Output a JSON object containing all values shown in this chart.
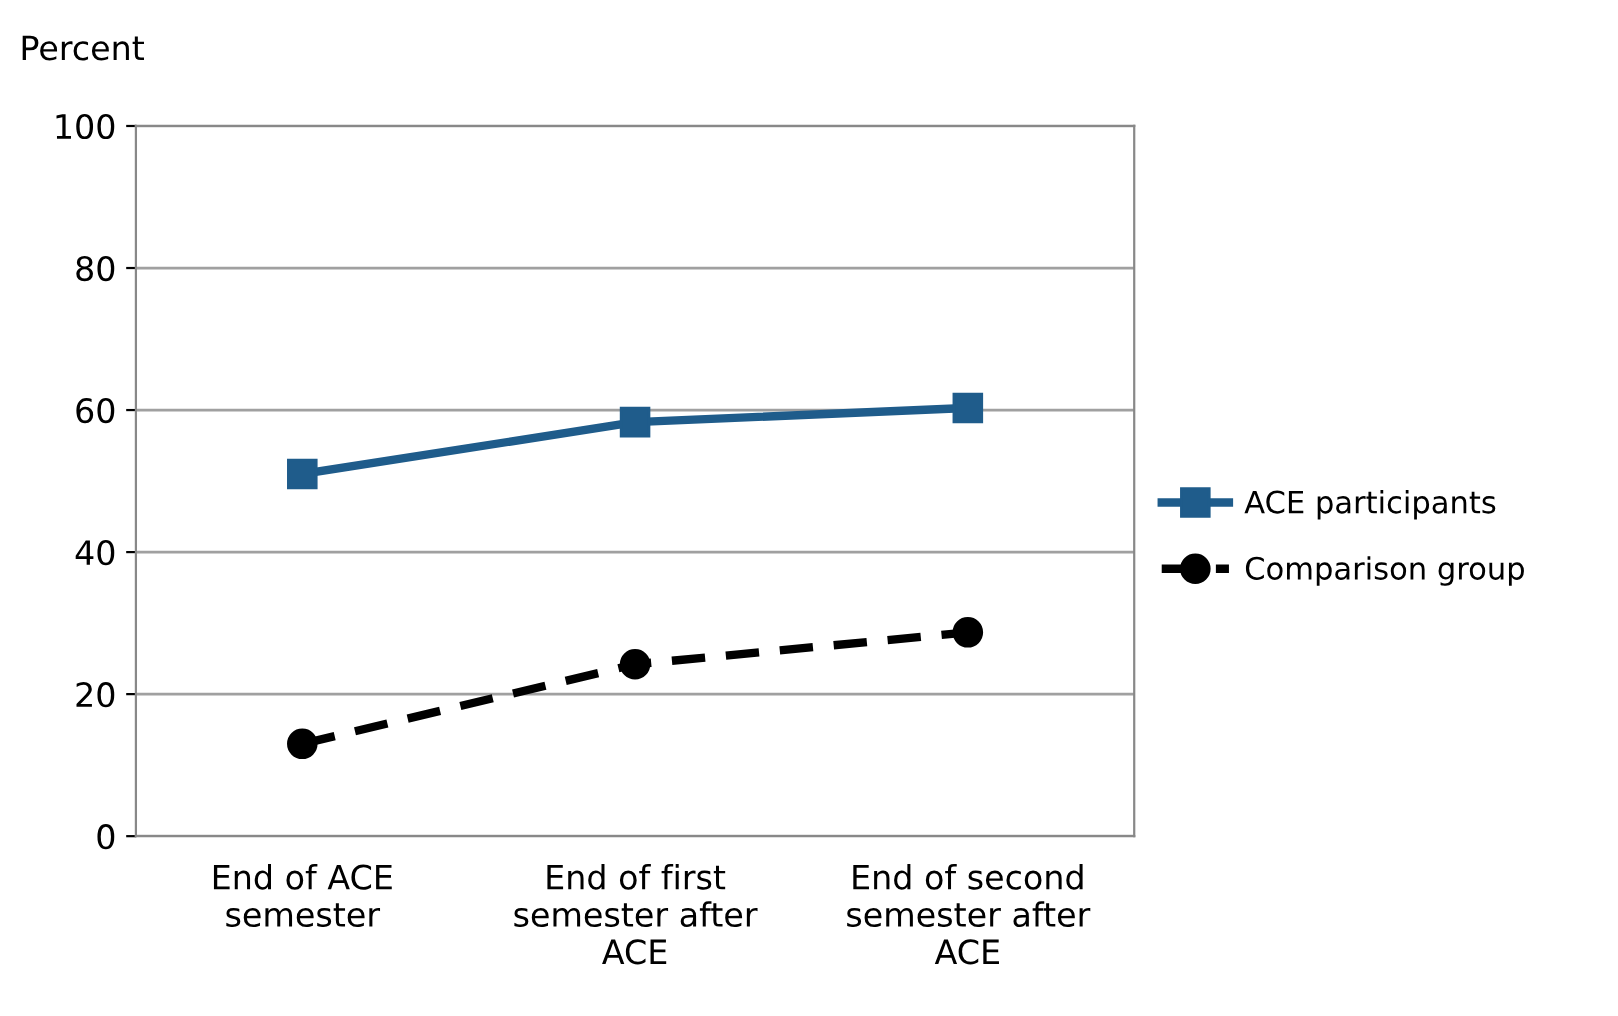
{
  "chart_data": {
    "type": "line",
    "ylabel": "Percent",
    "categories": [
      "End of ACE semester",
      "End of first semester after ACE",
      "End of second semester after ACE"
    ],
    "series": [
      {
        "name": "ACE participants",
        "color": "#1f5c8b",
        "values": [
          51,
          58.3,
          60.3
        ],
        "marker": "square",
        "line_style": "solid"
      },
      {
        "name": "Comparison group",
        "color": "#000000",
        "values": [
          13,
          24.2,
          28.7
        ],
        "marker": "circle",
        "line_style": "dashed"
      }
    ],
    "ylim": [
      0,
      100
    ],
    "yticks": [
      0,
      20,
      40,
      60,
      80,
      100
    ],
    "grid": "y",
    "legend": "right"
  }
}
